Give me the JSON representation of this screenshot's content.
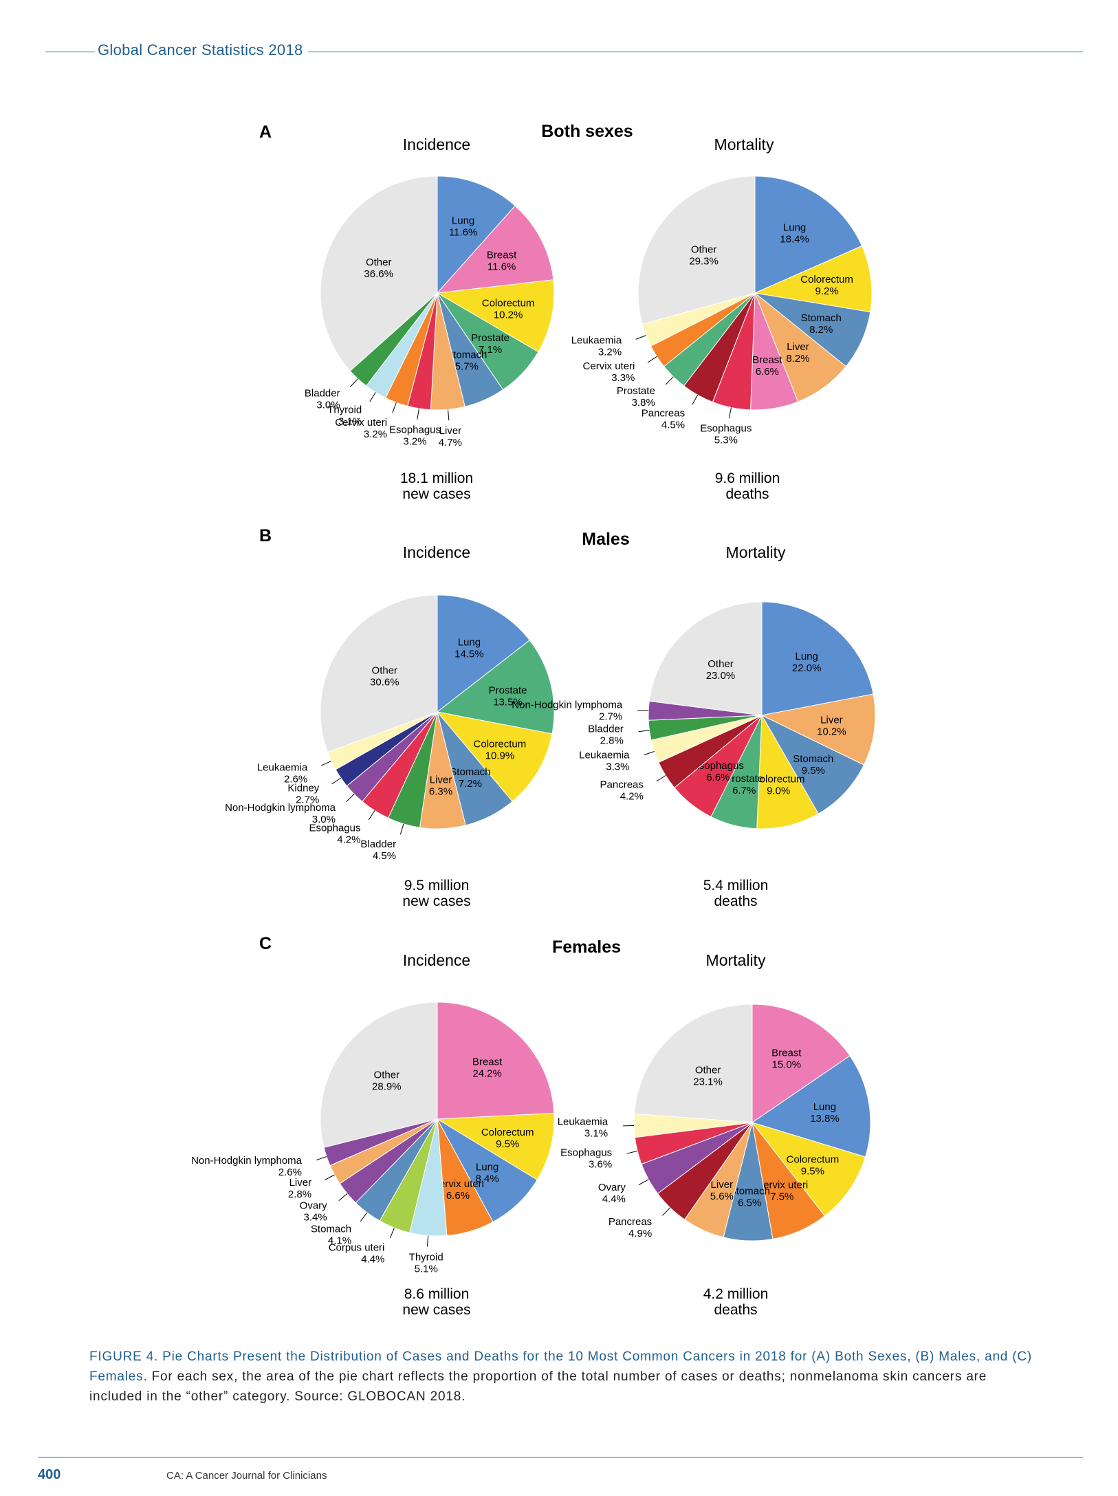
{
  "header": {
    "running_title": "Global Cancer Statistics 2018"
  },
  "footer": {
    "page_number": "400",
    "journal": "CA: A Cancer Journal for Clinicians"
  },
  "caption": {
    "bold": "FIGURE 4. Pie Charts Present the Distribution of Cases and Deaths for the 10 Most Common Cancers in 2018 for (A) Both Sexes, (B) Males, and (C) Females.",
    "text": "For each sex, the area of the pie chart reflects the proportion of the total number of cases or deaths; nonmelanoma skin cancers are included in the “other” category. Source: GLOBOCAN 2018."
  },
  "panels": [
    {
      "letter": "A",
      "title": "Both sexes"
    },
    {
      "letter": "B",
      "title": "Males"
    },
    {
      "letter": "C",
      "title": "Females"
    }
  ],
  "colors": {
    "other": "#e6e6e6",
    "blue": "#5b8fcf",
    "pink": "#ee7cb4",
    "yellow": "#f9dd22",
    "green": "#4fb07b",
    "steel": "#5b8dbd",
    "orange_light": "#f4ad66",
    "crimson": "#e33151",
    "orange": "#f5832a",
    "lightblue": "#b8e2ee",
    "darkgreen": "#3c9b47",
    "darkred": "#a61c2b",
    "paleyellow": "#fdf6b8",
    "purple": "#8a4a9e",
    "navy": "#2c3287",
    "lime": "#a6cf4a"
  },
  "chart_data": [
    {
      "type": "pie",
      "panel": "A",
      "title": "Incidence",
      "total": [
        "18.1 million",
        "new cases"
      ],
      "slices": [
        {
          "label": "Lung",
          "value": 11.6,
          "color": "blue"
        },
        {
          "label": "Breast",
          "value": 11.6,
          "color": "pink"
        },
        {
          "label": "Colorectum",
          "value": 10.2,
          "color": "yellow"
        },
        {
          "label": "Prostate",
          "value": 7.1,
          "color": "green"
        },
        {
          "label": "Stomach",
          "value": 5.7,
          "color": "steel"
        },
        {
          "label": "Liver",
          "value": 4.7,
          "color": "orange_light"
        },
        {
          "label": "Esophagus",
          "value": 3.2,
          "color": "crimson"
        },
        {
          "label": "Cervix uteri",
          "value": 3.2,
          "color": "orange"
        },
        {
          "label": "Thyroid",
          "value": 3.1,
          "color": "lightblue"
        },
        {
          "label": "Bladder",
          "value": 3.0,
          "color": "darkgreen"
        },
        {
          "label": "Other",
          "value": 36.6,
          "color": "other"
        }
      ]
    },
    {
      "type": "pie",
      "panel": "A",
      "title": "Mortality",
      "total": [
        "9.6 million",
        "deaths"
      ],
      "slices": [
        {
          "label": "Lung",
          "value": 18.4,
          "color": "blue"
        },
        {
          "label": "Colorectum",
          "value": 9.2,
          "color": "yellow"
        },
        {
          "label": "Stomach",
          "value": 8.2,
          "color": "steel"
        },
        {
          "label": "Liver",
          "value": 8.2,
          "color": "orange_light"
        },
        {
          "label": "Breast",
          "value": 6.6,
          "color": "pink"
        },
        {
          "label": "Esophagus",
          "value": 5.3,
          "color": "crimson"
        },
        {
          "label": "Pancreas",
          "value": 4.5,
          "color": "darkred"
        },
        {
          "label": "Prostate",
          "value": 3.8,
          "color": "green"
        },
        {
          "label": "Cervix uteri",
          "value": 3.3,
          "color": "orange"
        },
        {
          "label": "Leukaemia",
          "value": 3.2,
          "color": "paleyellow"
        },
        {
          "label": "Other",
          "value": 29.3,
          "color": "other"
        }
      ]
    },
    {
      "type": "pie",
      "panel": "B",
      "title": "Incidence",
      "total": [
        "9.5 million",
        "new cases"
      ],
      "slices": [
        {
          "label": "Lung",
          "value": 14.5,
          "color": "blue"
        },
        {
          "label": "Prostate",
          "value": 13.5,
          "color": "green"
        },
        {
          "label": "Colorectum",
          "value": 10.9,
          "color": "yellow"
        },
        {
          "label": "Stomach",
          "value": 7.2,
          "color": "steel"
        },
        {
          "label": "Liver",
          "value": 6.3,
          "color": "orange_light"
        },
        {
          "label": "Bladder",
          "value": 4.5,
          "color": "darkgreen"
        },
        {
          "label": "Esophagus",
          "value": 4.2,
          "color": "crimson"
        },
        {
          "label": "Non-Hodgkin lymphoma",
          "value": 3.0,
          "color": "purple"
        },
        {
          "label": "Kidney",
          "value": 2.7,
          "color": "navy"
        },
        {
          "label": "Leukaemia",
          "value": 2.6,
          "color": "paleyellow"
        },
        {
          "label": "Other",
          "value": 30.6,
          "color": "other"
        }
      ]
    },
    {
      "type": "pie",
      "panel": "B",
      "title": "Mortality",
      "total": [
        "5.4 million",
        "deaths"
      ],
      "slices": [
        {
          "label": "Lung",
          "value": 22.0,
          "color": "blue"
        },
        {
          "label": "Liver",
          "value": 10.2,
          "color": "orange_light"
        },
        {
          "label": "Stomach",
          "value": 9.5,
          "color": "steel"
        },
        {
          "label": "Colorectum",
          "value": 9.0,
          "color": "yellow"
        },
        {
          "label": "Prostate",
          "value": 6.7,
          "color": "green"
        },
        {
          "label": "Esophagus",
          "value": 6.6,
          "color": "crimson"
        },
        {
          "label": "Pancreas",
          "value": 4.2,
          "color": "darkred"
        },
        {
          "label": "Leukaemia",
          "value": 3.3,
          "color": "paleyellow"
        },
        {
          "label": "Bladder",
          "value": 2.8,
          "color": "darkgreen"
        },
        {
          "label": "Non-Hodgkin lymphoma",
          "value": 2.7,
          "color": "purple"
        },
        {
          "label": "Other",
          "value": 23.0,
          "color": "other"
        }
      ]
    },
    {
      "type": "pie",
      "panel": "C",
      "title": "Incidence",
      "total": [
        "8.6 million",
        "new cases"
      ],
      "slices": [
        {
          "label": "Breast",
          "value": 24.2,
          "color": "pink"
        },
        {
          "label": "Colorectum",
          "value": 9.5,
          "color": "yellow"
        },
        {
          "label": "Lung",
          "value": 8.4,
          "color": "blue"
        },
        {
          "label": "Cervix uteri",
          "value": 6.6,
          "color": "orange"
        },
        {
          "label": "Thyroid",
          "value": 5.1,
          "color": "lightblue"
        },
        {
          "label": "Corpus uteri",
          "value": 4.4,
          "color": "lime"
        },
        {
          "label": "Stomach",
          "value": 4.1,
          "color": "steel"
        },
        {
          "label": "Ovary",
          "value": 3.4,
          "color": "purple"
        },
        {
          "label": "Liver",
          "value": 2.8,
          "color": "orange_light"
        },
        {
          "label": "Non-Hodgkin lymphoma",
          "value": 2.6,
          "color": "purple"
        },
        {
          "label": "Other",
          "value": 28.9,
          "color": "other"
        }
      ]
    },
    {
      "type": "pie",
      "panel": "C",
      "title": "Mortality",
      "total": [
        "4.2 million",
        "deaths"
      ],
      "slices": [
        {
          "label": "Breast",
          "value": 15.0,
          "color": "pink"
        },
        {
          "label": "Lung",
          "value": 13.8,
          "color": "blue"
        },
        {
          "label": "Colorectum",
          "value": 9.5,
          "color": "yellow"
        },
        {
          "label": "Cervix uteri",
          "value": 7.5,
          "color": "orange"
        },
        {
          "label": "Stomach",
          "value": 6.5,
          "color": "steel"
        },
        {
          "label": "Liver",
          "value": 5.6,
          "color": "orange_light"
        },
        {
          "label": "Pancreas",
          "value": 4.9,
          "color": "darkred"
        },
        {
          "label": "Ovary",
          "value": 4.4,
          "color": "purple"
        },
        {
          "label": "Esophagus",
          "value": 3.6,
          "color": "crimson"
        },
        {
          "label": "Leukaemia",
          "value": 3.1,
          "color": "paleyellow"
        },
        {
          "label": "Other",
          "value": 23.1,
          "color": "other"
        }
      ]
    }
  ]
}
